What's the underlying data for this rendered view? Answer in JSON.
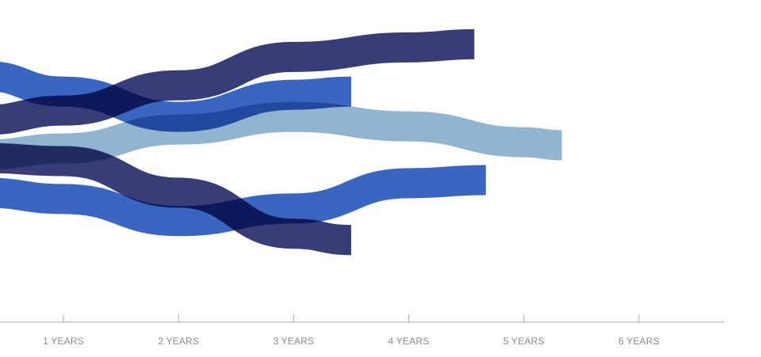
{
  "chart_data": {
    "type": "line",
    "title": "",
    "xlabel": "",
    "ylabel": "",
    "x_ticks": [
      1,
      2,
      3,
      4,
      5,
      6
    ],
    "x_tick_labels": [
      "1 YEARS",
      "2 YEARS",
      "3 YEARS",
      "4 YEARS",
      "5 YEARS",
      "6 YEARS"
    ],
    "xlim": [
      0.45,
      6.75
    ],
    "grid": false,
    "legend": "none",
    "axis_color": "#aaaaaa",
    "tick_label_color": "#8a8a8a",
    "series": [
      {
        "color": "#8fb4cf",
        "opacity": 0.98,
        "x": [
          0.45,
          1.0,
          2.0,
          3.0,
          4.0,
          5.0,
          5.33
        ],
        "y": [
          5.0,
          5.2,
          5.8,
          6.2,
          5.9,
          5.4,
          5.3
        ]
      },
      {
        "color": "#2d3370",
        "opacity": 0.95,
        "x": [
          0.45,
          1.0,
          2.0,
          3.0,
          4.0,
          4.57
        ],
        "y": [
          6.1,
          6.4,
          7.2,
          8.1,
          8.4,
          8.5
        ]
      },
      {
        "color": "#2f5ebf",
        "opacity": 0.95,
        "x": [
          0.45,
          1.0,
          2.0,
          3.0,
          3.5
        ],
        "y": [
          7.5,
          7.0,
          6.2,
          6.9,
          7.0
        ]
      },
      {
        "color": "#2d3370",
        "opacity": 0.95,
        "x": [
          0.45,
          1.0,
          2.0,
          3.0,
          3.5
        ],
        "y": [
          4.9,
          4.8,
          3.8,
          2.5,
          2.3
        ]
      },
      {
        "color": "#2f5ebf",
        "opacity": 0.95,
        "x": [
          0.45,
          1.0,
          2.0,
          3.0,
          4.0,
          4.67
        ],
        "y": [
          3.8,
          3.6,
          2.9,
          3.3,
          4.1,
          4.2
        ]
      }
    ],
    "ylim": [
      0,
      9.4
    ]
  }
}
